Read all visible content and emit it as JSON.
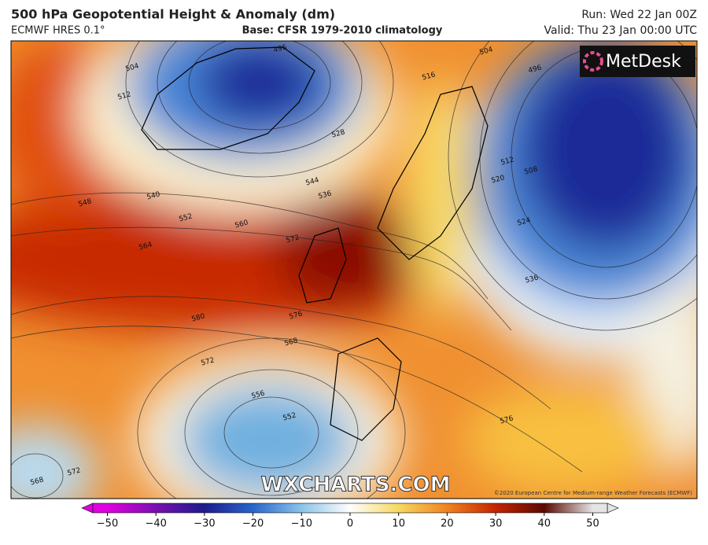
{
  "header": {
    "title": "500 hPa Geopotential Height & Anomaly (dm)",
    "model": "ECMWF HRES 0.1°",
    "base": "Base: CFSR 1979-2010 climatology",
    "run": "Run: Wed 22 Jan 00Z",
    "valid": "Valid: Thu 23 Jan 00:00 UTC"
  },
  "map": {
    "logo": "MetDesk",
    "watermark": "WXCHARTS.COM",
    "copyright": "©2020 European Centre for Medium-range Weather Forecasts (ECMWF)",
    "contour_labels": [
      504,
      512,
      496,
      516,
      504,
      496,
      528,
      540,
      548,
      552,
      560,
      564,
      572,
      544,
      536,
      512,
      508,
      520,
      524,
      536,
      580,
      576,
      568,
      572,
      556,
      552,
      576,
      572,
      568
    ]
  },
  "colorbar": {
    "clim": [
      -53,
      53
    ],
    "ticks": [
      {
        "value": -50,
        "label": "−50"
      },
      {
        "value": -40,
        "label": "−40"
      },
      {
        "value": -30,
        "label": "−30"
      },
      {
        "value": -20,
        "label": "−20"
      },
      {
        "value": -10,
        "label": "−10"
      },
      0,
      10,
      20,
      30,
      40,
      50
    ],
    "colors": [
      "#e000e0",
      "#7a10b0",
      "#1c1c8c",
      "#2a66cc",
      "#8cc4e8",
      "#ffffff",
      "#f8d860",
      "#f08420",
      "#c42400",
      "#5c0a00",
      "#e4e4e4"
    ]
  }
}
